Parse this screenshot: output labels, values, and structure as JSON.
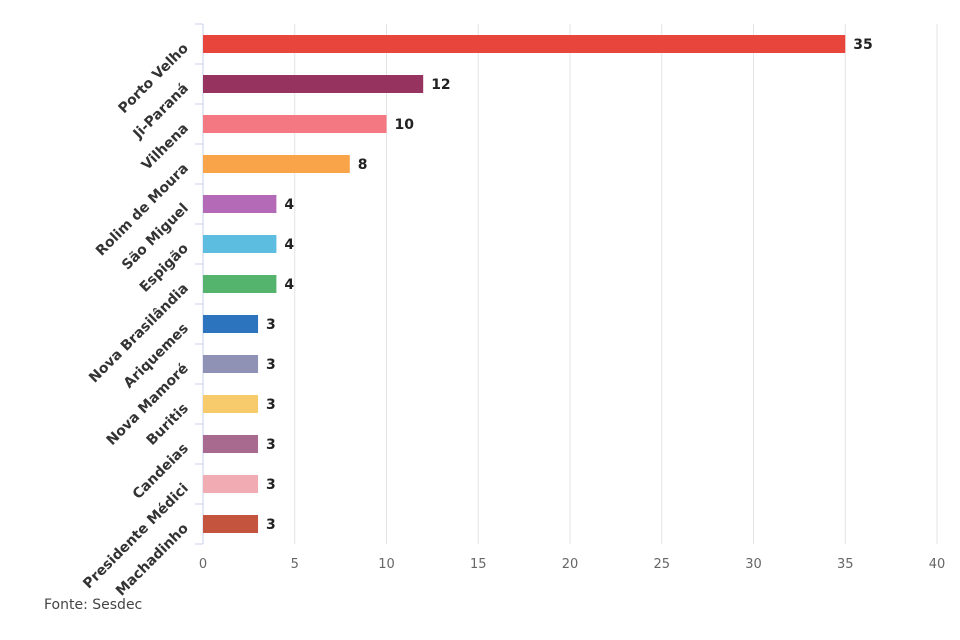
{
  "chart_data": {
    "type": "bar",
    "orientation": "horizontal",
    "categories": [
      "Porto Velho",
      "Ji-Paraná",
      "Vilhena",
      "Rolim de Moura",
      "São Miguel",
      "Espigão",
      "Nova Brasilândia",
      "Ariquemes",
      "Nova Mamoré",
      "Buritis",
      "Candeias",
      "Presidente Médici",
      "Machadinho"
    ],
    "values": [
      35,
      12,
      10,
      8,
      4,
      4,
      4,
      3,
      3,
      3,
      3,
      3,
      3
    ],
    "colors": [
      "#e8453c",
      "#96345f",
      "#f47882",
      "#f9a448",
      "#b56ab7",
      "#5dbde0",
      "#54b46d",
      "#2d74bf",
      "#8f92b5",
      "#f7ca6b",
      "#a86a8e",
      "#f1abb3",
      "#c5543f"
    ],
    "xticks": [
      "0",
      "5",
      "10",
      "15",
      "20",
      "25",
      "30",
      "35",
      "40"
    ],
    "xlim": [
      0,
      40
    ],
    "grid": "vertical",
    "legend": "none",
    "data_labels": true
  },
  "source": "Fonte: Sesdec"
}
